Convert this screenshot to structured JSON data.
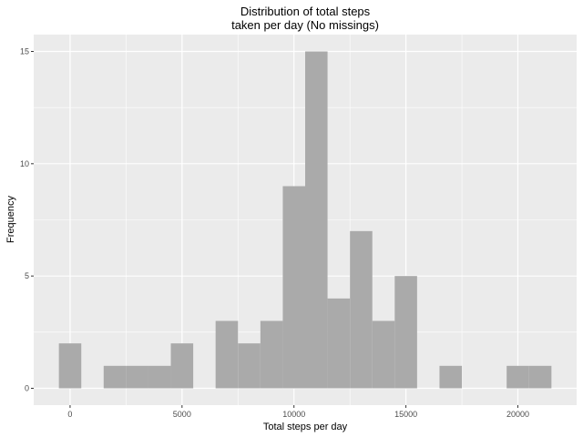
{
  "chart_data": {
    "type": "bar",
    "title_line1": "Distribution of total steps",
    "title_line2": "taken per day (No missings)",
    "xlabel": "Total steps per day",
    "ylabel": "Frequency",
    "bin_width": 1000,
    "bins": [
      {
        "center": 0,
        "count": 2
      },
      {
        "center": 1000,
        "count": 0
      },
      {
        "center": 2000,
        "count": 1
      },
      {
        "center": 3000,
        "count": 1
      },
      {
        "center": 4000,
        "count": 1
      },
      {
        "center": 5000,
        "count": 2
      },
      {
        "center": 6000,
        "count": 0
      },
      {
        "center": 7000,
        "count": 3
      },
      {
        "center": 8000,
        "count": 2
      },
      {
        "center": 9000,
        "count": 3
      },
      {
        "center": 10000,
        "count": 9
      },
      {
        "center": 11000,
        "count": 15
      },
      {
        "center": 12000,
        "count": 4
      },
      {
        "center": 13000,
        "count": 7
      },
      {
        "center": 14000,
        "count": 3
      },
      {
        "center": 15000,
        "count": 5
      },
      {
        "center": 16000,
        "count": 0
      },
      {
        "center": 17000,
        "count": 1
      },
      {
        "center": 18000,
        "count": 0
      },
      {
        "center": 19000,
        "count": 0
      },
      {
        "center": 20000,
        "count": 1
      },
      {
        "center": 21000,
        "count": 1
      }
    ],
    "xlim": [
      -1625,
      22625
    ],
    "ylim": [
      -0.75,
      15.75
    ],
    "x_ticks": [
      0,
      5000,
      10000,
      15000,
      20000
    ],
    "x_tick_labels": [
      "0",
      "5000",
      "10000",
      "15000",
      "20000"
    ],
    "y_ticks": [
      0,
      5,
      10,
      15
    ],
    "y_tick_labels": [
      "0",
      "5",
      "10",
      "15"
    ],
    "grid": true,
    "legend": "none",
    "colors": {
      "panel_background": "#ebebeb",
      "bar_fill": "#aaaaaa",
      "grid_major": "#ffffff"
    }
  }
}
